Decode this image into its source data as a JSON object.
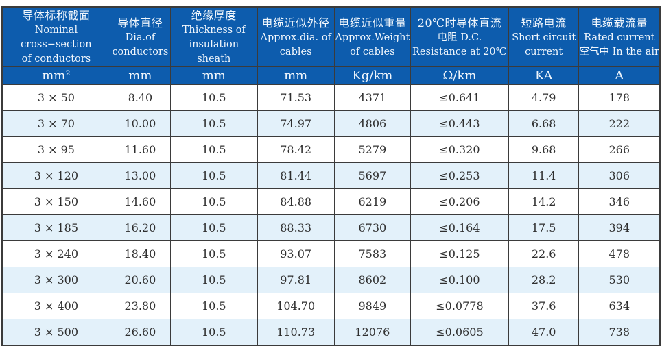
{
  "colors": {
    "header_bg": "#0d5cad",
    "header_text": "#f0f6fc",
    "row_alt_bg": "#e3f1fa",
    "row_bg": "#ffffff",
    "border": "#3b3b3b",
    "cell_text": "#2f2f2f"
  },
  "table": {
    "columns": [
      {
        "key": "cross-section",
        "lines": [
          "导体标称截面",
          "Nominal cross−section",
          "of conductors"
        ],
        "unit": "mm²",
        "width_pct": 16.4
      },
      {
        "key": "dia-of-conductors",
        "lines": [
          "导体直径",
          "Dia.of",
          "conductors"
        ],
        "unit": "mm",
        "width_pct": 9.2
      },
      {
        "key": "insulation-thickness",
        "lines": [
          "绝缘厚度",
          "Thickness of",
          "insulation sheath"
        ],
        "unit": "mm",
        "width_pct": 13.2
      },
      {
        "key": "approx-dia",
        "lines": [
          "电缆近似外径",
          "Approx.dia. of",
          "cables"
        ],
        "unit": "mm",
        "width_pct": 11.7
      },
      {
        "key": "approx-weight",
        "lines": [
          "电缆近似重量",
          "Approx.Weight",
          "of cables"
        ],
        "unit": "Kg/km",
        "width_pct": 11.6
      },
      {
        "key": "dc-resistance",
        "lines": [
          "20℃时导体直流",
          "电阻 D.C.",
          "Resistance at 20℃"
        ],
        "unit": "Ω/km",
        "width_pct": 14.9
      },
      {
        "key": "short-circuit-current",
        "lines": [
          "短路电流",
          "Short circuit",
          "current"
        ],
        "unit": "KA",
        "width_pct": 10.7
      },
      {
        "key": "rated-current",
        "lines": [
          "电缆载流量",
          "Rated current",
          "空气中 In the air"
        ],
        "unit": "A",
        "width_pct": 12.3
      }
    ],
    "rows": [
      [
        "3 × 50",
        "8.40",
        "10.5",
        "71.53",
        "4371",
        "≤0.641",
        "4.79",
        "178"
      ],
      [
        "3 × 70",
        "10.00",
        "10.5",
        "74.97",
        "4806",
        "≤0.443",
        "6.68",
        "222"
      ],
      [
        "3 × 95",
        "11.60",
        "10.5",
        "78.42",
        "5279",
        "≤0.320",
        "9.68",
        "266"
      ],
      [
        "3 × 120",
        "13.00",
        "10.5",
        "81.44",
        "5697",
        "≤0.253",
        "11.4",
        "306"
      ],
      [
        "3 × 150",
        "14.60",
        "10.5",
        "84.88",
        "6219",
        "≤0.206",
        "14.2",
        "346"
      ],
      [
        "3 × 185",
        "16.20",
        "10.5",
        "88.33",
        "6730",
        "≤0.164",
        "17.5",
        "394"
      ],
      [
        "3 × 240",
        "18.40",
        "10.5",
        "93.07",
        "7583",
        "≤0.125",
        "22.6",
        "478"
      ],
      [
        "3 × 300",
        "20.60",
        "10.5",
        "97.81",
        "8602",
        "≤0.100",
        "28.2",
        "530"
      ],
      [
        "3 × 400",
        "23.80",
        "10.5",
        "104.70",
        "9849",
        "≤0.0778",
        "37.6",
        "634"
      ],
      [
        "3 × 500",
        "26.60",
        "10.5",
        "110.73",
        "12076",
        "≤0.0605",
        "47.0",
        "738"
      ]
    ]
  }
}
